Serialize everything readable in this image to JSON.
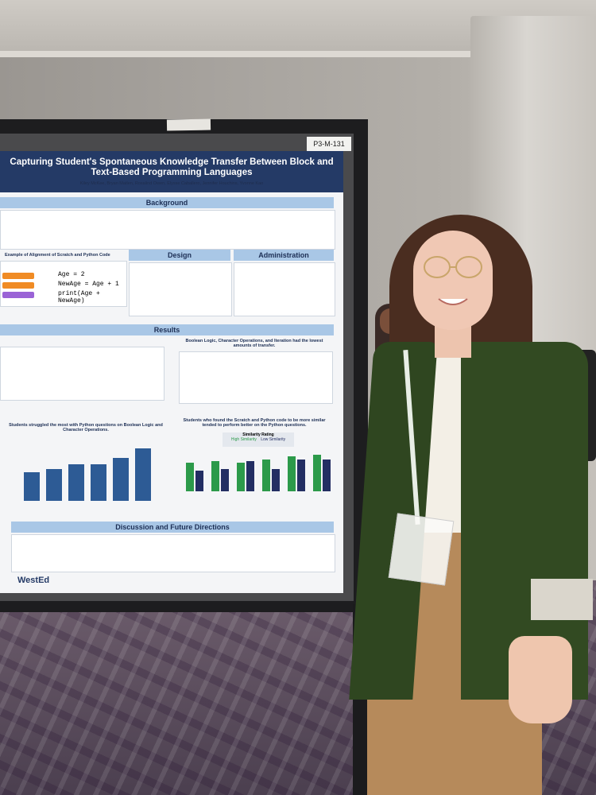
{
  "board": {
    "tag": "P3-M-131"
  },
  "poster": {
    "title": "Capturing Student's Spontaneous Knowledge Transfer Between Block and Text-Based Programming Languages",
    "authors": "Kiley McKee, Bryan Matlen, Rosalind Owen, Elysse Caballero, Jennifer Houchins, Yvonne Kao",
    "sections": {
      "background": "Background",
      "design": "Design",
      "administration": "Administration",
      "results": "Results",
      "discussion": "Discussion and Future Directions"
    },
    "example_heading": "Example of Alignment of Scratch and Python Code",
    "code": [
      "Age = 2",
      "NewAge = Age + 1",
      "print(Age + NewAge)"
    ],
    "results_table_heading": "Boolean Logic, Character Operations, and Iteration had the lowest amounts of transfer.",
    "chart1_heading": "Students struggled the most with Python questions on Boolean Logic and Character Operations.",
    "chart2_heading": "Students who found the Scratch and Python code to be more similar tended to perform better on the Python questions.",
    "legend_title": "Similarity Rating",
    "legend_high": "High Similarity",
    "legend_low": "Low Similarity",
    "logo": "WestEd"
  },
  "colors": {
    "poster_header": "#243a66",
    "section_bar": "#a9c7e6",
    "blazer": "#324a22"
  }
}
